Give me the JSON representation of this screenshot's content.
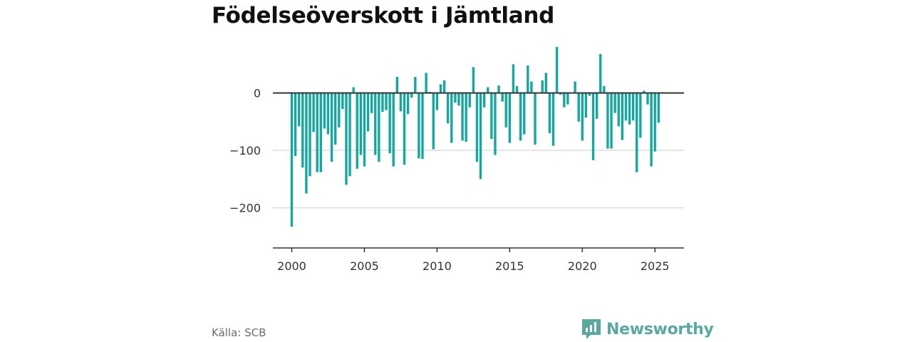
{
  "title": "Födelseöverskott i Jämtland",
  "source": "Källa: SCB",
  "brand": {
    "name": "Newsworthy",
    "logo_icon": "bar-chart-speech-bubble-icon",
    "color": "#5aa9a1"
  },
  "colors": {
    "bar": "#13a89e",
    "zero_line": "#333333",
    "grid": "#dddddd",
    "axis": "#333333"
  },
  "chart_data": {
    "type": "bar",
    "title": "Födelseöverskott i Jämtland",
    "xlabel": "",
    "ylabel": "",
    "grid": true,
    "x_ticks": [
      "2000",
      "2005",
      "2010",
      "2015",
      "2020",
      "2025"
    ],
    "y_ticks": [
      {
        "value": 0,
        "label": "0"
      },
      {
        "value": -100,
        "label": "−100"
      },
      {
        "value": -200,
        "label": "−200"
      }
    ],
    "ylim": [
      -270,
      85
    ],
    "xlim": [
      1998.7,
      2027
    ],
    "x": [
      2000.0,
      2000.25,
      2000.5,
      2000.75,
      2001.0,
      2001.25,
      2001.5,
      2001.75,
      2002.0,
      2002.25,
      2002.5,
      2002.75,
      2003.0,
      2003.25,
      2003.5,
      2003.75,
      2004.0,
      2004.25,
      2004.5,
      2004.75,
      2005.0,
      2005.25,
      2005.5,
      2005.75,
      2006.0,
      2006.25,
      2006.5,
      2006.75,
      2007.0,
      2007.25,
      2007.5,
      2007.75,
      2008.0,
      2008.25,
      2008.5,
      2008.75,
      2009.0,
      2009.25,
      2009.5,
      2009.75,
      2010.0,
      2010.25,
      2010.5,
      2010.75,
      2011.0,
      2011.25,
      2011.5,
      2011.75,
      2012.0,
      2012.25,
      2012.5,
      2012.75,
      2013.0,
      2013.25,
      2013.5,
      2013.75,
      2014.0,
      2014.25,
      2014.5,
      2014.75,
      2015.0,
      2015.25,
      2015.5,
      2015.75,
      2016.0,
      2016.25,
      2016.5,
      2016.75,
      2017.0,
      2017.25,
      2017.5,
      2017.75,
      2018.0,
      2018.25,
      2018.5,
      2018.75,
      2019.0,
      2019.25,
      2019.5,
      2019.75,
      2020.0,
      2020.25,
      2020.5,
      2020.75,
      2021.0,
      2021.25,
      2021.5,
      2021.75,
      2022.0,
      2022.25,
      2022.5,
      2022.75,
      2023.0,
      2023.25,
      2023.5,
      2023.75,
      2024.0,
      2024.25,
      2024.5,
      2024.75,
      2025.0,
      2025.25
    ],
    "values": [
      -233,
      -110,
      -58,
      -130,
      -175,
      -145,
      -68,
      -138,
      -138,
      -62,
      -72,
      -120,
      -90,
      -60,
      -28,
      -160,
      -145,
      10,
      -132,
      -108,
      -128,
      -67,
      -35,
      -108,
      -120,
      -33,
      -30,
      -105,
      -128,
      28,
      -32,
      -125,
      -37,
      -8,
      28,
      -114,
      -115,
      35,
      2,
      -98,
      -30,
      15,
      22,
      -53,
      -87,
      -17,
      -22,
      -83,
      -85,
      -25,
      45,
      -120,
      -150,
      -25,
      10,
      -80,
      -108,
      13,
      -15,
      -60,
      -87,
      50,
      12,
      -83,
      -72,
      48,
      20,
      -90,
      0,
      22,
      35,
      -70,
      -92,
      80,
      -3,
      -25,
      -20,
      0,
      20,
      -50,
      -83,
      -43,
      -5,
      -117,
      -45,
      68,
      12,
      -97,
      -97,
      -35,
      -58,
      -82,
      -48,
      -55,
      -48,
      -138,
      -78,
      4,
      -20,
      -128,
      -102,
      -52
    ]
  }
}
